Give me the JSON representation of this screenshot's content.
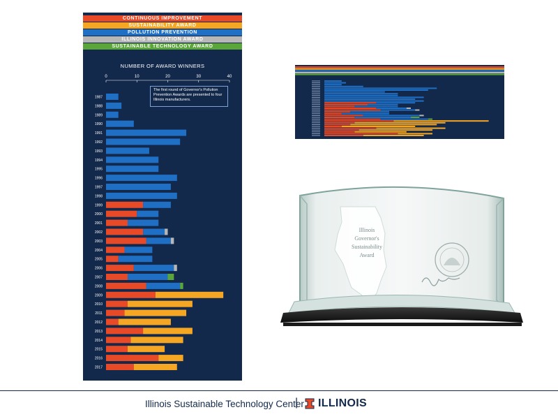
{
  "legend": {
    "items": [
      {
        "label": "CONTINUOUS IMPROVEMENT",
        "color": "#e84a27"
      },
      {
        "label": "SUSTAINABILITY AWARD",
        "color": "#f5a623"
      },
      {
        "label": "POLLUTION PREVENTION",
        "color": "#1f6fc5"
      },
      {
        "label": "ILLINOIS INNOVATION AWARD",
        "color": "#b7b7b7"
      },
      {
        "label": "SUSTAINABLE TECHNOLOGY AWARD",
        "color": "#5aa63b"
      }
    ]
  },
  "annotation_text": "The first round of Governor's Pollution Prevention Awards are presented to four Illinois manufacturers.",
  "chart_data": {
    "type": "bar",
    "orientation": "horizontal",
    "stacked": true,
    "title": "NUMBER OF AWARD WINNERS",
    "xlim": [
      0,
      40
    ],
    "xticks": [
      0,
      10,
      20,
      30,
      40
    ],
    "categories": [
      "1987",
      "1988",
      "1989",
      "1990",
      "1991",
      "1992",
      "1993",
      "1994",
      "1995",
      "1996",
      "1997",
      "1998",
      "1999",
      "2000",
      "2001",
      "2002",
      "2003",
      "2004",
      "2005",
      "2006",
      "2007",
      "2008",
      "2009",
      "2010",
      "2011",
      "2012",
      "2013",
      "2014",
      "2015",
      "2016",
      "2017"
    ],
    "series": [
      {
        "name": "CONTINUOUS IMPROVEMENT",
        "color": "#e84a27",
        "values": [
          0,
          0,
          0,
          0,
          0,
          0,
          0,
          0,
          0,
          0,
          0,
          0,
          12,
          10,
          7,
          12,
          13,
          6,
          4,
          9,
          7,
          13,
          16,
          7,
          6,
          4,
          12,
          8,
          7,
          17,
          9
        ]
      },
      {
        "name": "SUSTAINABILITY AWARD",
        "color": "#f5a623",
        "values": [
          0,
          0,
          0,
          0,
          0,
          0,
          0,
          0,
          0,
          0,
          0,
          0,
          0,
          0,
          0,
          0,
          0,
          0,
          0,
          0,
          0,
          0,
          22,
          21,
          20,
          17,
          16,
          17,
          12,
          8,
          14
        ]
      },
      {
        "name": "POLLUTION PREVENTION",
        "color": "#1f6fc5",
        "values": [
          4,
          5,
          4,
          9,
          26,
          24,
          14,
          17,
          17,
          23,
          21,
          23,
          9,
          7,
          10,
          7,
          8,
          9,
          11,
          13,
          13,
          11,
          0,
          0,
          0,
          0,
          0,
          0,
          0,
          0,
          0
        ]
      },
      {
        "name": "ILLINOIS INNOVATION AWARD",
        "color": "#b7b7b7",
        "values": [
          0,
          0,
          0,
          0,
          0,
          0,
          0,
          0,
          0,
          0,
          0,
          0,
          0,
          0,
          0,
          1,
          1,
          0,
          0,
          1,
          0,
          0,
          0,
          0,
          0,
          0,
          0,
          0,
          0,
          0,
          0
        ]
      },
      {
        "name": "SUSTAINABLE TECHNOLOGY AWARD",
        "color": "#5aa63b",
        "values": [
          0,
          0,
          0,
          0,
          0,
          0,
          0,
          0,
          0,
          0,
          0,
          0,
          0,
          0,
          0,
          0,
          0,
          0,
          0,
          0,
          2,
          1,
          0,
          0,
          0,
          0,
          0,
          0,
          0,
          0,
          0
        ]
      }
    ]
  },
  "award": {
    "line1": "Illinois",
    "line2": "Governor's",
    "line3": "Sustainability",
    "line4": "Award"
  },
  "footer": {
    "org_name": "Illinois Sustainable Technology Center",
    "separator": "|",
    "brand": "ILLINOIS"
  }
}
